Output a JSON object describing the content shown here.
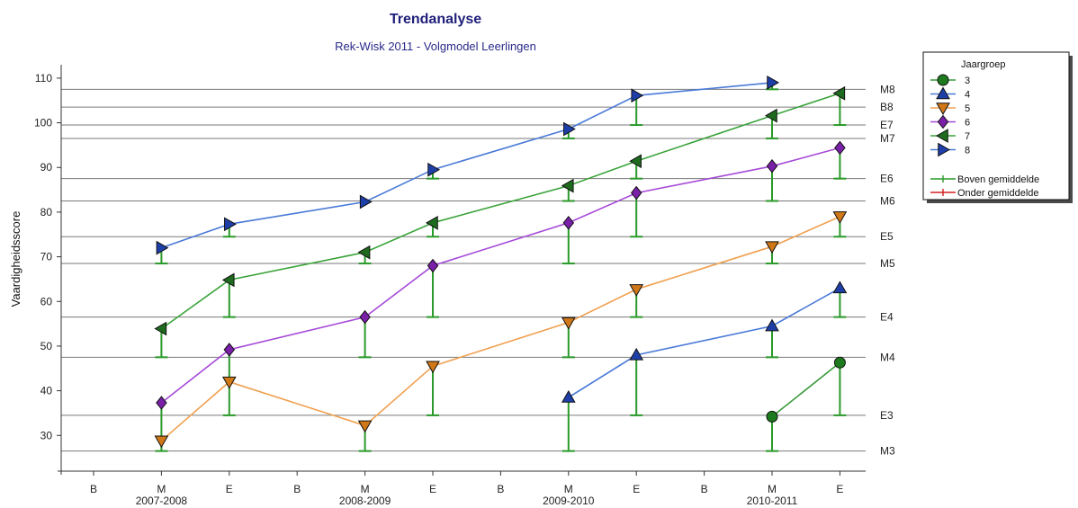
{
  "chart_data": {
    "type": "line",
    "title": "Trendanalyse",
    "subtitle": "Rek-Wisk 2011 - Volgmodel Leerlingen",
    "ylabel": "Vaardigheidsscore",
    "ylim": [
      22,
      113
    ],
    "yticks": [
      30,
      40,
      50,
      60,
      70,
      80,
      90,
      100,
      110
    ],
    "x_periods": [
      "B",
      "M",
      "E",
      "B",
      "M",
      "E",
      "B",
      "M",
      "E",
      "B",
      "M",
      "E"
    ],
    "x_years": [
      {
        "label": "2007-2008",
        "index": 1
      },
      {
        "label": "2008-2009",
        "index": 4
      },
      {
        "label": "2009-2010",
        "index": 7
      },
      {
        "label": "2010-2011",
        "index": 10
      }
    ],
    "levels": [
      {
        "label": "M3",
        "value": 26.5
      },
      {
        "label": "E3",
        "value": 34.5
      },
      {
        "label": "M4",
        "value": 47.5
      },
      {
        "label": "E4",
        "value": 56.5
      },
      {
        "label": "M5",
        "value": 68.5
      },
      {
        "label": "E5",
        "value": 74.5
      },
      {
        "label": "M6",
        "value": 82.5
      },
      {
        "label": "E6",
        "value": 87.5
      },
      {
        "label": "M7",
        "value": 96.5
      },
      {
        "label": "E7",
        "value": 99.5
      },
      {
        "label": "B8",
        "value": 103.5
      },
      {
        "label": "M8",
        "value": 107.5
      }
    ],
    "series": [
      {
        "name": "3",
        "color": "#3a9a3a",
        "marker": "circle",
        "fill": "#1e7a1e",
        "points": [
          {
            "x": 10,
            "y": 34.2
          },
          {
            "x": 11,
            "y": 46.3
          }
        ]
      },
      {
        "name": "4",
        "color": "#4a7ad8",
        "marker": "triangle-up",
        "fill": "#1f3fa8",
        "points": [
          {
            "x": 7,
            "y": 38.5
          },
          {
            "x": 8,
            "y": 48.0
          },
          {
            "x": 10,
            "y": 54.5
          },
          {
            "x": 11,
            "y": 63.0
          }
        ]
      },
      {
        "name": "5",
        "color": "#f0a050",
        "marker": "triangle-down",
        "fill": "#d07818",
        "points": [
          {
            "x": 1,
            "y": 28.8
          },
          {
            "x": 2,
            "y": 42.0
          },
          {
            "x": 4,
            "y": 32.2
          },
          {
            "x": 5,
            "y": 45.5
          },
          {
            "x": 7,
            "y": 55.3
          },
          {
            "x": 8,
            "y": 62.7
          },
          {
            "x": 10,
            "y": 72.3
          },
          {
            "x": 11,
            "y": 79.0
          }
        ]
      },
      {
        "name": "6",
        "color": "#a64ad8",
        "marker": "diamond",
        "fill": "#7a1fa8",
        "points": [
          {
            "x": 1,
            "y": 37.3
          },
          {
            "x": 2,
            "y": 49.2
          },
          {
            "x": 4,
            "y": 56.5
          },
          {
            "x": 5,
            "y": 68.0
          },
          {
            "x": 7,
            "y": 77.6
          },
          {
            "x": 8,
            "y": 84.3
          },
          {
            "x": 10,
            "y": 90.3
          },
          {
            "x": 11,
            "y": 94.4
          }
        ]
      },
      {
        "name": "7",
        "color": "#3aa33a",
        "marker": "triangle-left",
        "fill": "#1e6a1e",
        "points": [
          {
            "x": 1,
            "y": 53.9
          },
          {
            "x": 2,
            "y": 64.8
          },
          {
            "x": 4,
            "y": 71.0
          },
          {
            "x": 5,
            "y": 77.6
          },
          {
            "x": 7,
            "y": 85.9
          },
          {
            "x": 8,
            "y": 91.4
          },
          {
            "x": 10,
            "y": 101.6
          },
          {
            "x": 11,
            "y": 106.6
          }
        ]
      },
      {
        "name": "8",
        "color": "#4a7ad8",
        "marker": "triangle-right",
        "fill": "#1f3fa8",
        "points": [
          {
            "x": 1,
            "y": 72.0
          },
          {
            "x": 2,
            "y": 77.3
          },
          {
            "x": 4,
            "y": 82.3
          },
          {
            "x": 5,
            "y": 89.5
          },
          {
            "x": 7,
            "y": 98.6
          },
          {
            "x": 8,
            "y": 106.1
          },
          {
            "x": 10,
            "y": 109.0
          }
        ]
      }
    ],
    "bars": {
      "color": "#2a9a2a",
      "items": [
        {
          "x": 1,
          "low": 26.5,
          "high": 37.3
        },
        {
          "x": 1,
          "low": 47.5,
          "high": 53.9
        },
        {
          "x": 1,
          "low": 68.5,
          "high": 72.0
        },
        {
          "x": 2,
          "low": 34.5,
          "high": 49.2
        },
        {
          "x": 2,
          "low": 56.5,
          "high": 64.8
        },
        {
          "x": 2,
          "low": 74.5,
          "high": 77.3
        },
        {
          "x": 4,
          "low": 26.5,
          "high": 32.2
        },
        {
          "x": 4,
          "low": 47.5,
          "high": 56.5
        },
        {
          "x": 4,
          "low": 68.5,
          "high": 71.0
        },
        {
          "x": 5,
          "low": 34.5,
          "high": 45.5
        },
        {
          "x": 5,
          "low": 56.5,
          "high": 68.0
        },
        {
          "x": 5,
          "low": 74.5,
          "high": 77.6
        },
        {
          "x": 5,
          "low": 87.5,
          "high": 89.5
        },
        {
          "x": 7,
          "low": 26.5,
          "high": 38.5
        },
        {
          "x": 7,
          "low": 47.5,
          "high": 55.3
        },
        {
          "x": 7,
          "low": 68.5,
          "high": 77.6
        },
        {
          "x": 7,
          "low": 82.5,
          "high": 85.9
        },
        {
          "x": 7,
          "low": 96.5,
          "high": 98.6
        },
        {
          "x": 8,
          "low": 34.5,
          "high": 48.0
        },
        {
          "x": 8,
          "low": 56.5,
          "high": 62.7
        },
        {
          "x": 8,
          "low": 74.5,
          "high": 84.3
        },
        {
          "x": 8,
          "low": 87.5,
          "high": 91.4
        },
        {
          "x": 8,
          "low": 99.5,
          "high": 106.1
        },
        {
          "x": 10,
          "low": 26.5,
          "high": 34.2
        },
        {
          "x": 10,
          "low": 47.5,
          "high": 54.5
        },
        {
          "x": 10,
          "low": 68.5,
          "high": 72.3
        },
        {
          "x": 10,
          "low": 82.5,
          "high": 90.3
        },
        {
          "x": 10,
          "low": 96.5,
          "high": 101.6
        },
        {
          "x": 10,
          "low": 107.5,
          "high": 109.0
        },
        {
          "x": 11,
          "low": 34.5,
          "high": 46.3
        },
        {
          "x": 11,
          "low": 56.5,
          "high": 63.0
        },
        {
          "x": 11,
          "low": 74.5,
          "high": 79.0
        },
        {
          "x": 11,
          "low": 87.5,
          "high": 94.4
        },
        {
          "x": 11,
          "low": 99.5,
          "high": 106.6
        }
      ]
    },
    "legend": {
      "title": "Jaargroep",
      "position": "top-right",
      "extra": [
        {
          "label": "Boven gemiddelde",
          "color": "#2a9a2a"
        },
        {
          "label": "Onder gemiddelde",
          "color": "#d42020"
        }
      ]
    },
    "grid": "horizontal reference lines"
  }
}
